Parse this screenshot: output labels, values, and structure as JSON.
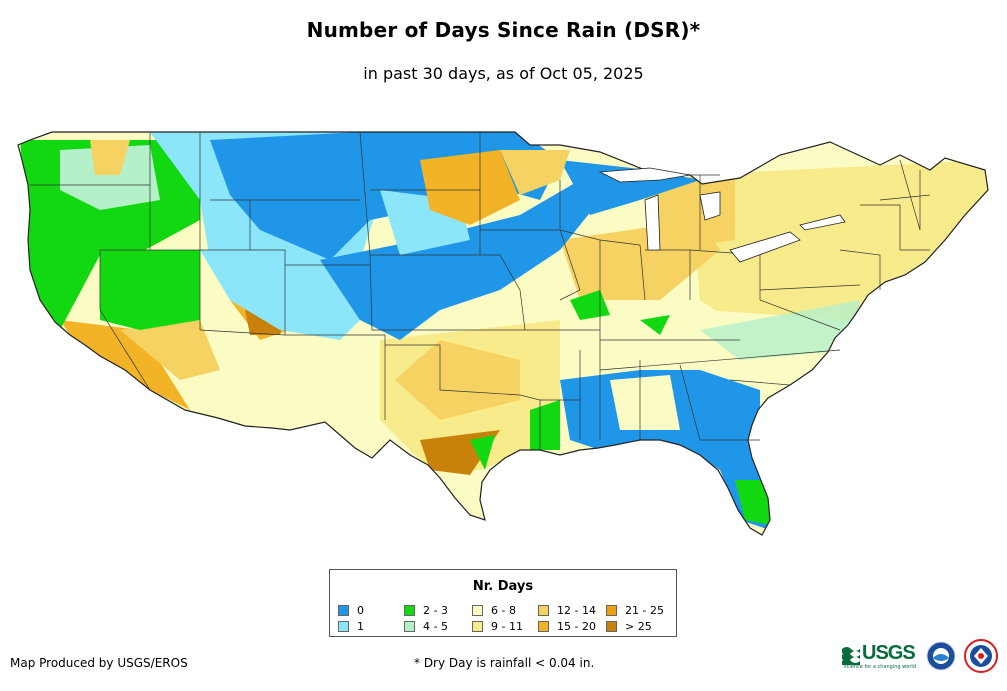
{
  "header": {
    "title": "Number of Days Since Rain (DSR)*",
    "subtitle": "in past 30 days, as of Oct 05, 2025"
  },
  "legend": {
    "title": "Nr. Days",
    "items": [
      {
        "label": "0",
        "color": "#1f96e8"
      },
      {
        "label": "1",
        "color": "#8ce6fa"
      },
      {
        "label": "2 - 3",
        "color": "#12d812"
      },
      {
        "label": "4 - 5",
        "color": "#b4f0c8"
      },
      {
        "label": "6 - 8",
        "color": "#fbfbc4"
      },
      {
        "label": "9 - 11",
        "color": "#f8eb8c"
      },
      {
        "label": "12 - 14",
        "color": "#f5d261"
      },
      {
        "label": "15 - 20",
        "color": "#f2b327"
      },
      {
        "label": "21 - 25",
        "color": "#ef9d12"
      },
      {
        "label": "> 25",
        "color": "#c8820c"
      }
    ]
  },
  "footer": {
    "credit": "Map Produced by USGS/EROS",
    "footnote": "* Dry Day is rainfall < 0.04 in."
  },
  "logos": {
    "usgs": "USGS",
    "usgs_tagline": "science for a changing world",
    "icons": [
      "usgs-logo-icon",
      "noaa-seal-icon",
      "nws-seal-icon"
    ]
  }
}
